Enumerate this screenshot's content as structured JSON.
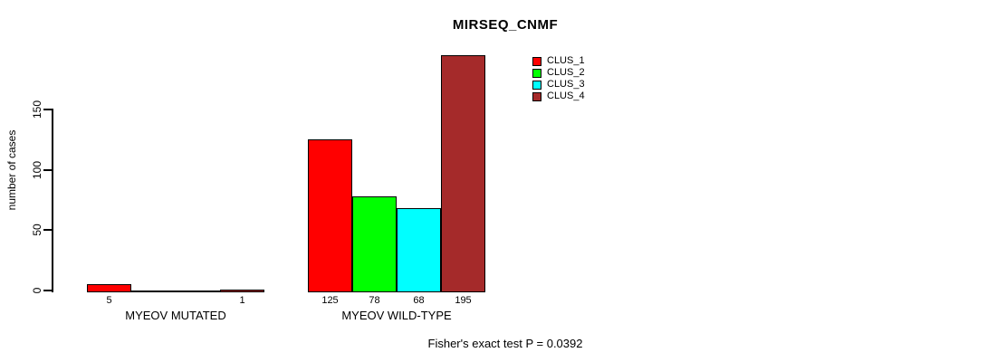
{
  "title": "MIRSEQ_CNMF",
  "footer": "Fisher's exact test P = 0.0392",
  "y_axis": {
    "label": "number of cases"
  },
  "legend": {
    "items": [
      {
        "label": "CLUS_1",
        "color": "#ff0000"
      },
      {
        "label": "CLUS_2",
        "color": "#00ff00"
      },
      {
        "label": "CLUS_3",
        "color": "#00ffff"
      },
      {
        "label": "CLUS_4",
        "color": "#a52a2a"
      }
    ]
  },
  "chart_data": {
    "type": "bar",
    "title": "MIRSEQ_CNMF",
    "xlabel": "",
    "ylabel": "number of cases",
    "ylim": [
      0,
      150
    ],
    "yticks": [
      0,
      50,
      100,
      150
    ],
    "grid": false,
    "legend_position": "top-right-inside",
    "categories": [
      "MYEOV MUTATED",
      "MYEOV WILD-TYPE"
    ],
    "series": [
      {
        "name": "CLUS_1",
        "color": "#ff0000",
        "values": [
          5,
          125
        ]
      },
      {
        "name": "CLUS_2",
        "color": "#00ff00",
        "values": [
          0,
          78
        ]
      },
      {
        "name": "CLUS_3",
        "color": "#00ffff",
        "values": [
          0,
          68
        ]
      },
      {
        "name": "CLUS_4",
        "color": "#a52a2a",
        "values": [
          1,
          195
        ]
      }
    ],
    "value_labels": [
      [
        "5",
        "",
        "",
        "1"
      ],
      [
        "125",
        "78",
        "68",
        "195"
      ]
    ],
    "annotation": "Fisher's exact test P = 0.0392"
  }
}
